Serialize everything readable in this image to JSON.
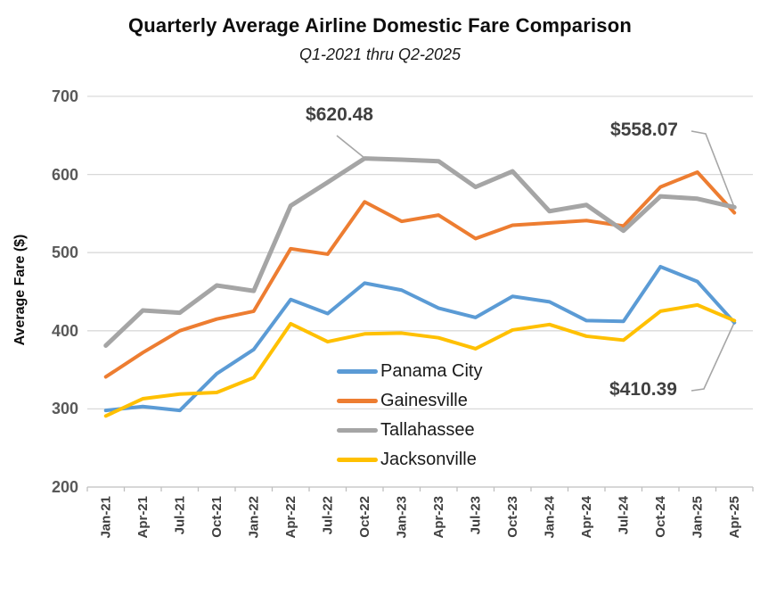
{
  "chart_data": {
    "type": "line",
    "title": "Quarterly Average Airline Domestic Fare Comparison",
    "subtitle": "Q1-2021 thru Q2-2025",
    "ylabel": "Average Fare ($)",
    "xlabel": "",
    "ylim": [
      200,
      700
    ],
    "y_ticks": [
      200,
      300,
      400,
      500,
      600,
      700
    ],
    "grid": "horizontal",
    "legend_position": "inside-bottom-center",
    "categories": [
      "Jan-21",
      "Apr-21",
      "Jul-21",
      "Oct-21",
      "Jan-22",
      "Apr-22",
      "Jul-22",
      "Oct-22",
      "Jan-23",
      "Apr-23",
      "Jul-23",
      "Oct-23",
      "Jan-24",
      "Apr-24",
      "Jul-24",
      "Oct-24",
      "Jan-25",
      "Apr-25"
    ],
    "series": [
      {
        "name": "Panama City",
        "color": "#5B9BD5",
        "values": [
          298,
          303,
          298,
          345,
          376,
          440,
          422,
          461,
          452,
          429,
          417,
          444,
          437,
          413,
          412,
          482,
          463,
          410.39
        ]
      },
      {
        "name": "Gainesville",
        "color": "#ED7D31",
        "values": [
          341,
          372,
          400,
          415,
          425,
          505,
          498,
          565,
          540,
          548,
          518,
          535,
          538,
          541,
          534,
          584,
          603,
          551
        ]
      },
      {
        "name": "Tallahassee",
        "color": "#A5A5A5",
        "values": [
          381,
          426,
          423,
          458,
          451,
          560,
          590,
          620.48,
          619,
          617,
          584,
          604,
          553,
          561,
          528,
          572,
          569,
          558.07
        ]
      },
      {
        "name": "Jacksonville",
        "color": "#FFC000",
        "values": [
          291,
          313,
          319,
          321,
          340,
          409,
          386,
          396,
          397,
          391,
          377,
          401,
          408,
          393,
          388,
          425,
          433,
          413
        ]
      }
    ],
    "annotations": [
      {
        "text": "$620.48",
        "series": "Tallahassee",
        "category": "Oct-22"
      },
      {
        "text": "$558.07",
        "series": "Tallahassee",
        "category": "Apr-25"
      },
      {
        "text": "$410.39",
        "series": "Panama City",
        "category": "Apr-25"
      }
    ]
  }
}
